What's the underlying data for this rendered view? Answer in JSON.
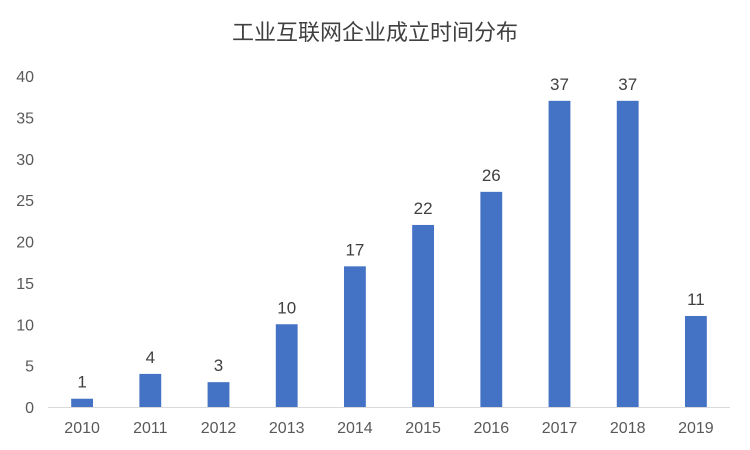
{
  "chart_data": {
    "type": "bar",
    "title": "工业互联网企业成立时间分布",
    "categories": [
      "2010",
      "2011",
      "2012",
      "2013",
      "2014",
      "2015",
      "2016",
      "2017",
      "2018",
      "2019"
    ],
    "values": [
      1,
      4,
      3,
      10,
      17,
      22,
      26,
      37,
      37,
      11
    ],
    "ylim": [
      0,
      40
    ],
    "yticks": [
      0,
      5,
      10,
      15,
      20,
      25,
      30,
      35,
      40
    ],
    "xlabel": "",
    "ylabel": "",
    "grid": false,
    "legend": "none",
    "bar_color": "#4472C4"
  }
}
